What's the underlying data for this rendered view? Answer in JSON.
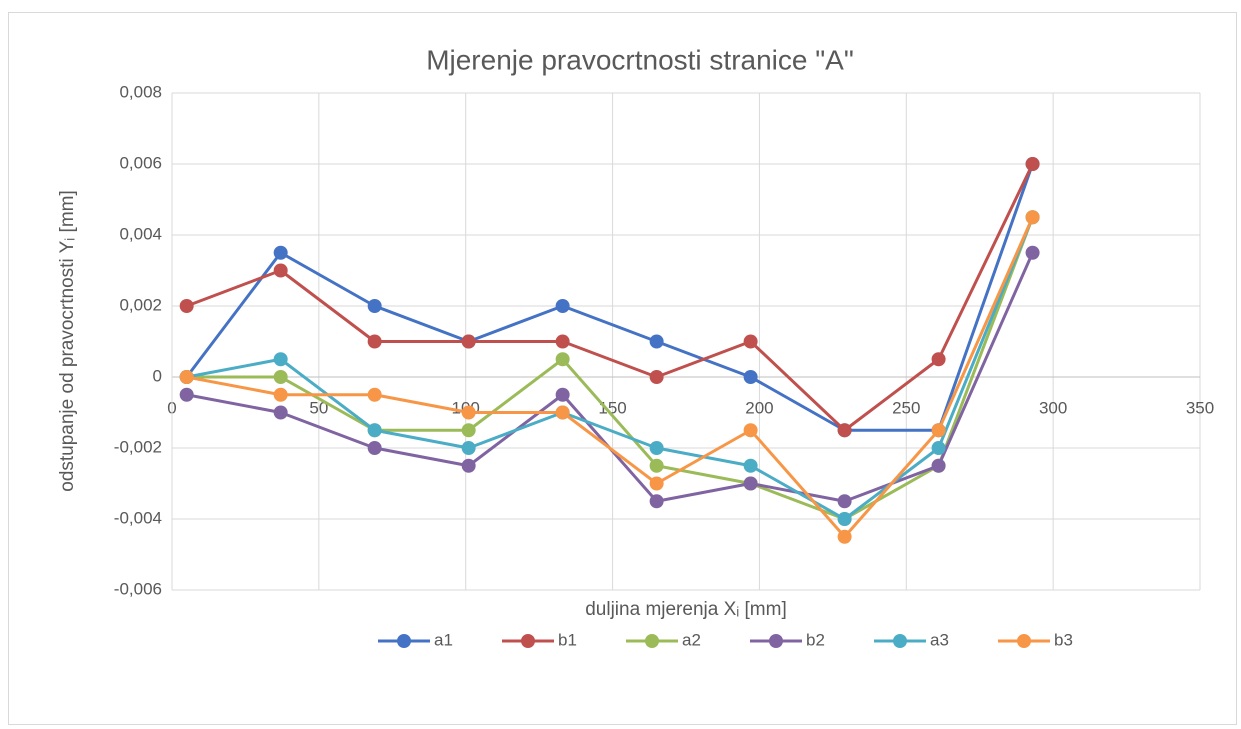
{
  "chart_data": {
    "type": "line",
    "title": "Mjerenje pravocrtnosti stranice \"A\"",
    "x_label": "duljina mjerenja Xᵢ [mm]",
    "y_label": "odstupanje od pravocrtnosti Yᵢ [mm]",
    "x": [
      5,
      37,
      69,
      101,
      133,
      165,
      197,
      229,
      261,
      293
    ],
    "series": [
      {
        "name": "a1",
        "color": "#4472c4",
        "values": [
          0,
          0.0035,
          0.002,
          0.001,
          0.002,
          0.001,
          0,
          -0.0015,
          -0.0015,
          0.006
        ]
      },
      {
        "name": "b1",
        "color": "#c0504d",
        "values": [
          0.002,
          0.003,
          0.001,
          0.001,
          0.001,
          0,
          0.001,
          -0.0015,
          0.0005,
          0.006
        ]
      },
      {
        "name": "a2",
        "color": "#9bbb59",
        "values": [
          0,
          0,
          -0.0015,
          -0.0015,
          0.0005,
          -0.0025,
          -0.003,
          -0.004,
          -0.0025,
          0.0045
        ]
      },
      {
        "name": "b2",
        "color": "#8064a2",
        "values": [
          -0.0005,
          -0.001,
          -0.002,
          -0.0025,
          -0.0005,
          -0.0035,
          -0.003,
          -0.0035,
          -0.0025,
          0.0035
        ]
      },
      {
        "name": "a3",
        "color": "#4bacc6",
        "values": [
          0,
          0.0005,
          -0.0015,
          -0.002,
          -0.001,
          -0.002,
          -0.0025,
          -0.004,
          -0.002,
          0.0045
        ]
      },
      {
        "name": "b3",
        "color": "#f79646",
        "values": [
          0,
          -0.0005,
          -0.0005,
          -0.001,
          -0.001,
          -0.003,
          -0.0015,
          -0.0045,
          -0.0015,
          0.0045
        ]
      }
    ],
    "xlim": [
      0,
      350
    ],
    "xticks": [
      0,
      50,
      100,
      150,
      200,
      250,
      300,
      350
    ],
    "ylim": [
      -0.006,
      0.008
    ],
    "yticks": [
      {
        "value": -0.006,
        "label": "-0,006"
      },
      {
        "value": -0.004,
        "label": "-0,004"
      },
      {
        "value": -0.002,
        "label": "-0,002"
      },
      0,
      {
        "value": 0.002,
        "label": "0,002"
      },
      {
        "value": 0.004,
        "label": "0,004"
      },
      {
        "value": 0.006,
        "label": "0,006"
      },
      {
        "value": 0.008,
        "label": "0,008"
      }
    ],
    "grid": true,
    "legend": "bottom"
  }
}
